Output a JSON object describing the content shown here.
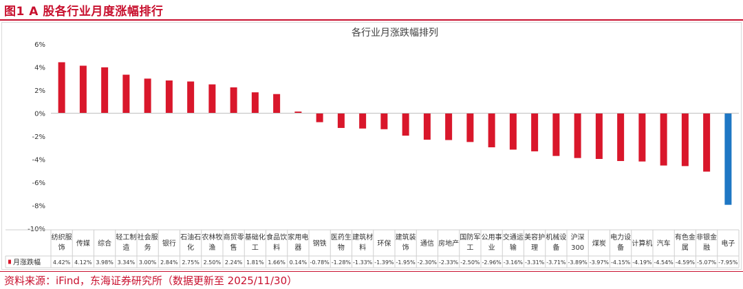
{
  "figure": {
    "title": "图1  A 股各行业月度涨幅排行",
    "source": "资料来源：iFind，东海证券研究所（数据更新至 2025/11/30）"
  },
  "colors": {
    "bar": "#d9172b",
    "highlight": "#1f77c4",
    "title": "#c8102e"
  },
  "chart_data": {
    "type": "bar",
    "title": "各行业月涨跌幅排列",
    "xlabel": "",
    "ylabel": "",
    "ylim": [
      -10,
      6
    ],
    "yticks": [
      6,
      4,
      2,
      0,
      -2,
      -4,
      -6,
      -8,
      -10
    ],
    "ytick_labels": [
      "6%",
      "4%",
      "2%",
      "0%",
      "-2%",
      "-4%",
      "-6%",
      "-8%",
      "-10%"
    ],
    "grid": false,
    "legend": "table-row-left",
    "categories": [
      [
        "纺织服",
        "饰"
      ],
      [
        "传媒"
      ],
      [
        "综合"
      ],
      [
        "轻工制",
        "造"
      ],
      [
        "社会服",
        "务"
      ],
      [
        "银行"
      ],
      [
        "石油石",
        "化"
      ],
      [
        "农林牧",
        "渔"
      ],
      [
        "商贸零",
        "售"
      ],
      [
        "基础化",
        "工"
      ],
      [
        "食品饮",
        "料"
      ],
      [
        "家用电",
        "器"
      ],
      [
        "钢铁"
      ],
      [
        "医药生",
        "物"
      ],
      [
        "建筑材",
        "料"
      ],
      [
        "环保"
      ],
      [
        "建筑装",
        "饰"
      ],
      [
        "通信"
      ],
      [
        "房地产"
      ],
      [
        "国防军",
        "工"
      ],
      [
        "公用事",
        "业"
      ],
      [
        "交通运",
        "输"
      ],
      [
        "美容护",
        "理"
      ],
      [
        "机械设",
        "备"
      ],
      [
        "沪深",
        "300"
      ],
      [
        "煤炭"
      ],
      [
        "电力设",
        "备"
      ],
      [
        "计算机"
      ],
      [
        "汽车"
      ],
      [
        "有色金",
        "属"
      ],
      [
        "非银金",
        "融"
      ],
      [
        "电子"
      ]
    ],
    "series": [
      {
        "name": "月涨跌幅",
        "values": [
          4.42,
          4.12,
          3.98,
          3.34,
          3.0,
          2.84,
          2.75,
          2.5,
          2.24,
          1.81,
          1.66,
          0.14,
          -0.78,
          -1.28,
          -1.33,
          -1.39,
          -1.95,
          -2.3,
          -2.33,
          -2.5,
          -2.96,
          -3.16,
          -3.31,
          -3.71,
          -3.89,
          -3.97,
          -4.15,
          -4.19,
          -4.54,
          -4.59,
          -5.07,
          -7.95
        ],
        "labels": [
          "4.42%",
          "4.12%",
          "3.98%",
          "3.34%",
          "3.00%",
          "2.84%",
          "2.75%",
          "2.50%",
          "2.24%",
          "1.81%",
          "1.66%",
          "0.14%",
          "-0.78%",
          "-1.28%",
          "-1.33%",
          "-1.39%",
          "-1.95%",
          "-2.30%",
          "-2.33%",
          "-2.50%",
          "-2.96%",
          "-3.16%",
          "-3.31%",
          "-3.71%",
          "-3.89%",
          "-3.97%",
          "-4.15%",
          "-4.19%",
          "-4.54%",
          "-4.59%",
          "-5.07%",
          "-7.95%"
        ]
      }
    ],
    "highlight_category": [
      "电子"
    ]
  }
}
